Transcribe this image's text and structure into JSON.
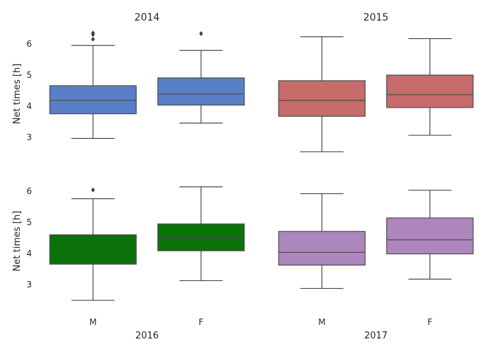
{
  "chart_data": [
    {
      "type": "box",
      "title": "2014",
      "ylabel": "Net times [h]",
      "xlabel": "",
      "categories": [
        "M",
        "F"
      ],
      "show_xticks": false,
      "show_yticks": true,
      "color": "#5a7fc9",
      "ylim": [
        2.3,
        6.5
      ],
      "yticks": [
        3,
        4,
        5,
        6
      ],
      "boxes": [
        {
          "category": "M",
          "min": 2.97,
          "q1": 3.76,
          "median": 4.19,
          "q3": 4.66,
          "max": 5.95,
          "outliers": [
            6.15,
            6.3,
            6.35
          ]
        },
        {
          "category": "F",
          "min": 3.46,
          "q1": 4.04,
          "median": 4.39,
          "q3": 4.91,
          "max": 5.79,
          "outliers": [
            6.33
          ]
        }
      ]
    },
    {
      "type": "box",
      "title": "2015",
      "ylabel": "",
      "xlabel": "",
      "categories": [
        "M",
        "F"
      ],
      "show_xticks": false,
      "show_yticks": false,
      "color": "#c86b6b",
      "ylim": [
        2.3,
        6.5
      ],
      "yticks": [
        3,
        4,
        5,
        6
      ],
      "boxes": [
        {
          "category": "M",
          "min": 2.54,
          "q1": 3.68,
          "median": 4.19,
          "q3": 4.82,
          "max": 6.23,
          "outliers": []
        },
        {
          "category": "F",
          "min": 3.07,
          "q1": 3.96,
          "median": 4.37,
          "q3": 5.0,
          "max": 6.17,
          "outliers": []
        }
      ]
    },
    {
      "type": "box",
      "title": "",
      "ylabel": "Net times [h]",
      "xlabel": "2016",
      "categories": [
        "M",
        "F"
      ],
      "show_xticks": true,
      "show_yticks": true,
      "color": "#0b720b",
      "ylim": [
        2.3,
        6.5
      ],
      "yticks": [
        3,
        4,
        5,
        6
      ],
      "boxes": [
        {
          "category": "M",
          "min": 2.5,
          "q1": 3.66,
          "median": 4.13,
          "q3": 4.6,
          "max": 5.76,
          "outliers": [
            6.04
          ]
        },
        {
          "category": "F",
          "min": 3.13,
          "q1": 4.09,
          "median": 4.49,
          "q3": 4.95,
          "max": 6.14,
          "outliers": []
        }
      ]
    },
    {
      "type": "box",
      "title": "",
      "ylabel": "",
      "xlabel": "2017",
      "categories": [
        "M",
        "F"
      ],
      "show_xticks": true,
      "show_yticks": false,
      "color": "#ae86be",
      "ylim": [
        2.3,
        6.5
      ],
      "yticks": [
        3,
        4,
        5,
        6
      ],
      "boxes": [
        {
          "category": "M",
          "min": 2.88,
          "q1": 3.63,
          "median": 4.04,
          "q3": 4.71,
          "max": 5.92,
          "outliers": []
        },
        {
          "category": "F",
          "min": 3.18,
          "q1": 3.99,
          "median": 4.44,
          "q3": 5.14,
          "max": 6.03,
          "outliers": []
        }
      ]
    }
  ]
}
